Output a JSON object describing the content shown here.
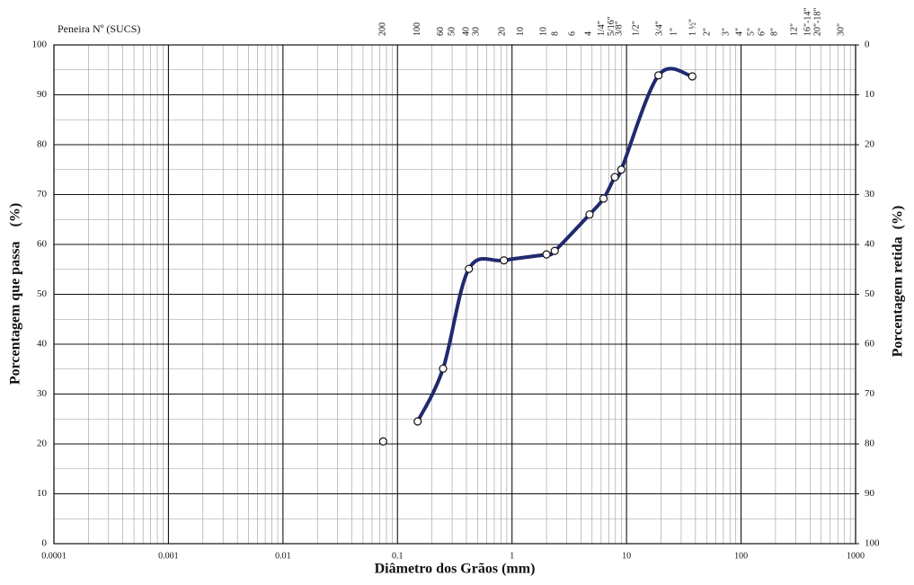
{
  "chart_data": {
    "type": "line",
    "log_x": true,
    "grid": true,
    "top_axis_title": "Peneira Nº (SUCS)",
    "xlabel": "Diâmetro dos Grãos (mm)",
    "ylabel": "Porcentagem que passa    (%)",
    "y2label": "Porcentagem retida  (%)",
    "xlim": [
      0.0001,
      1000
    ],
    "xticks": [
      0.0001,
      0.001,
      0.01,
      0.1,
      1,
      10,
      100,
      1000
    ],
    "ylim": [
      0,
      100
    ],
    "yticks": [
      0,
      10,
      20,
      30,
      40,
      50,
      60,
      70,
      80,
      90,
      100
    ],
    "y2lim": [
      100,
      0
    ],
    "y2ticks": [
      0,
      10,
      20,
      30,
      40,
      50,
      60,
      70,
      80,
      90,
      100
    ],
    "top_labels": [
      {
        "value": 0.075,
        "label": "200"
      },
      {
        "value": 0.15,
        "label": "100"
      },
      {
        "value": 0.24,
        "label": "60"
      },
      {
        "value": 0.3,
        "label": "50"
      },
      {
        "value": 0.4,
        "label": "40"
      },
      {
        "value": 0.49,
        "label": "30"
      },
      {
        "value": 0.83,
        "label": "20"
      },
      {
        "value": 1.2,
        "label": "10"
      },
      {
        "value": 1.9,
        "label": "10"
      },
      {
        "value": 2.4,
        "label": "8"
      },
      {
        "value": 3.4,
        "label": "6"
      },
      {
        "value": 4.7,
        "label": "4"
      },
      {
        "value": 6.1,
        "label": "1/4\""
      },
      {
        "value": 7.4,
        "label": "5/16\""
      },
      {
        "value": 8.7,
        "label": "3/8\""
      },
      {
        "value": 12.2,
        "label": "1/2\""
      },
      {
        "value": 19.5,
        "label": "3/4\""
      },
      {
        "value": 26.1,
        "label": "1\""
      },
      {
        "value": 38.1,
        "label": "1 ½\""
      },
      {
        "value": 50.8,
        "label": "2\""
      },
      {
        "value": 74.3,
        "label": "3\""
      },
      {
        "value": 97.5,
        "label": "4\""
      },
      {
        "value": 123,
        "label": "5\""
      },
      {
        "value": 153,
        "label": "6\""
      },
      {
        "value": 197,
        "label": "8\""
      },
      {
        "value": 294,
        "label": "12\""
      },
      {
        "value": 385,
        "label": "16\"-14\""
      },
      {
        "value": 470,
        "label": "20\"-18\""
      },
      {
        "value": 752,
        "label": "30\""
      }
    ],
    "series": [
      {
        "color": "#1f2a6e",
        "smooth": false,
        "x": [
          0.075
        ],
        "values": [
          20.5
        ]
      },
      {
        "color": "#1f2a6e",
        "smooth": true,
        "x": [
          0.15,
          0.25,
          0.42,
          0.85,
          2.0,
          2.36,
          4.75,
          6.3,
          7.9,
          9.0,
          19,
          37.5
        ],
        "values": [
          24.5,
          35.1,
          55.1,
          56.8,
          58.0,
          58.7,
          66.0,
          69.2,
          73.5,
          75.0,
          93.9,
          93.7
        ]
      }
    ]
  }
}
